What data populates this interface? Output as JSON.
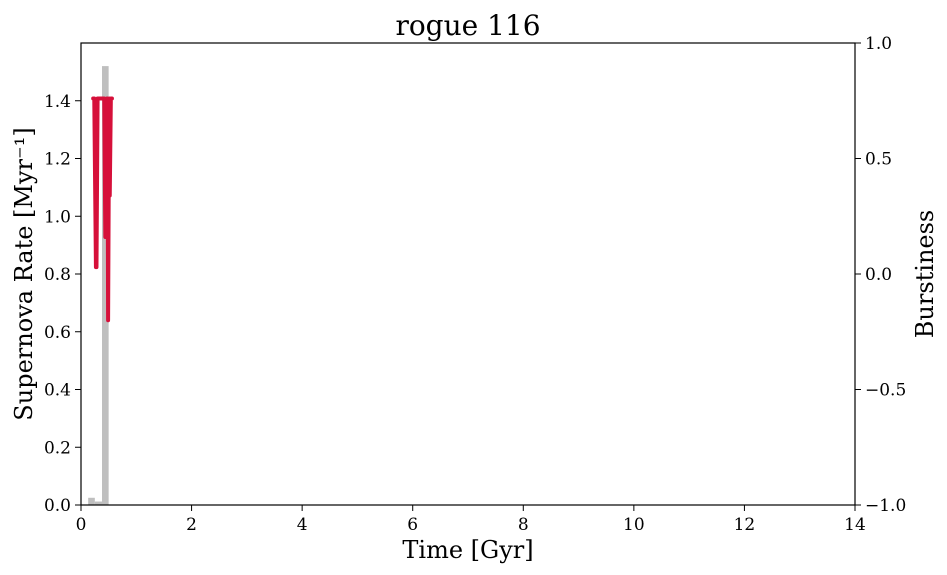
{
  "chart_data": {
    "type": "bar+line",
    "title": "rogue 116",
    "xlabel": "Time [Gyr]",
    "ylabel_left": "Supernova Rate [Myr⁻¹]",
    "ylabel_right": "Burstiness",
    "xlim": [
      0,
      14
    ],
    "ylim_left": [
      0,
      1.6
    ],
    "ylim_right": [
      -1.0,
      1.0
    ],
    "x_ticks": [
      0,
      2,
      4,
      6,
      8,
      10,
      12,
      14
    ],
    "x_tick_labels": [
      "0",
      "2",
      "4",
      "6",
      "8",
      "10",
      "12",
      "14"
    ],
    "y_left_ticks": [
      0,
      0.2,
      0.4,
      0.6,
      0.8,
      1.0,
      1.2,
      1.4
    ],
    "y_left_tick_labels": [
      "0.0",
      "0.2",
      "0.4",
      "0.6",
      "0.8",
      "1.0",
      "1.2",
      "1.4"
    ],
    "y_right_ticks": [
      -1.0,
      -0.5,
      0.0,
      0.5,
      1.0
    ],
    "y_right_tick_labels": [
      "−1.0",
      "−0.5",
      "0.0",
      "0.5",
      "1.0"
    ],
    "grid": false,
    "histogram": {
      "color": "#bfbfbf",
      "bins": [
        {
          "x0": 0.13,
          "x1": 0.25,
          "value": 0.025
        },
        {
          "x0": 0.25,
          "x1": 0.38,
          "value": 0.012
        },
        {
          "x0": 0.38,
          "x1": 0.5,
          "value": 1.52
        },
        {
          "x0": 0.5,
          "x1": 0.58,
          "value": 0.0
        }
      ]
    },
    "burstiness_line": {
      "color": "#d6103a",
      "x": [
        0.22,
        0.24,
        0.27,
        0.28,
        0.3,
        0.33,
        0.36,
        0.4,
        0.42,
        0.44,
        0.46,
        0.47,
        0.48,
        0.49,
        0.5,
        0.51,
        0.52,
        0.54,
        0.56
      ],
      "y": [
        0.76,
        0.76,
        0.03,
        0.03,
        0.76,
        0.76,
        0.76,
        0.76,
        0.76,
        0.16,
        0.3,
        0.76,
        0.76,
        -0.2,
        0.3,
        0.76,
        0.34,
        0.76,
        0.76
      ]
    }
  }
}
